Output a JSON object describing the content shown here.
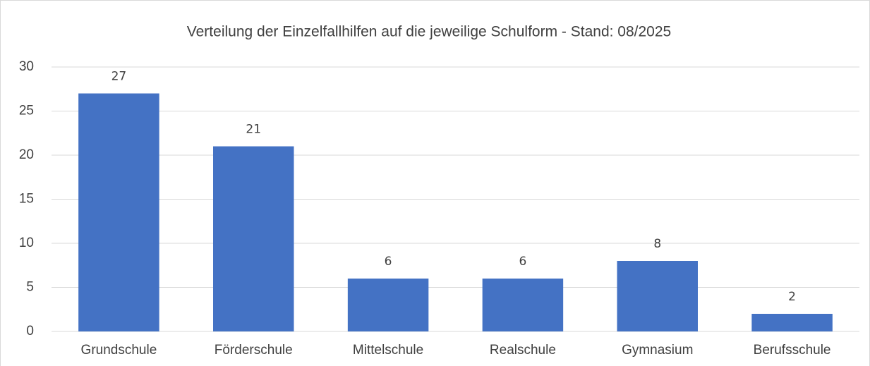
{
  "chart_data": {
    "type": "bar",
    "title": "Verteilung der Einzelfallhilfen auf die jeweilige Schulform - Stand: 08/2025",
    "categories": [
      "Grundschule",
      "Förderschule",
      "Mittelschule",
      "Realschule",
      "Gymnasium",
      "Berufsschule"
    ],
    "values": [
      27,
      21,
      6,
      6,
      8,
      2
    ],
    "color": "#4472c4",
    "ylim": [
      0,
      30
    ],
    "yticks": [
      0,
      5,
      10,
      15,
      20,
      25,
      30
    ],
    "grid": true
  }
}
